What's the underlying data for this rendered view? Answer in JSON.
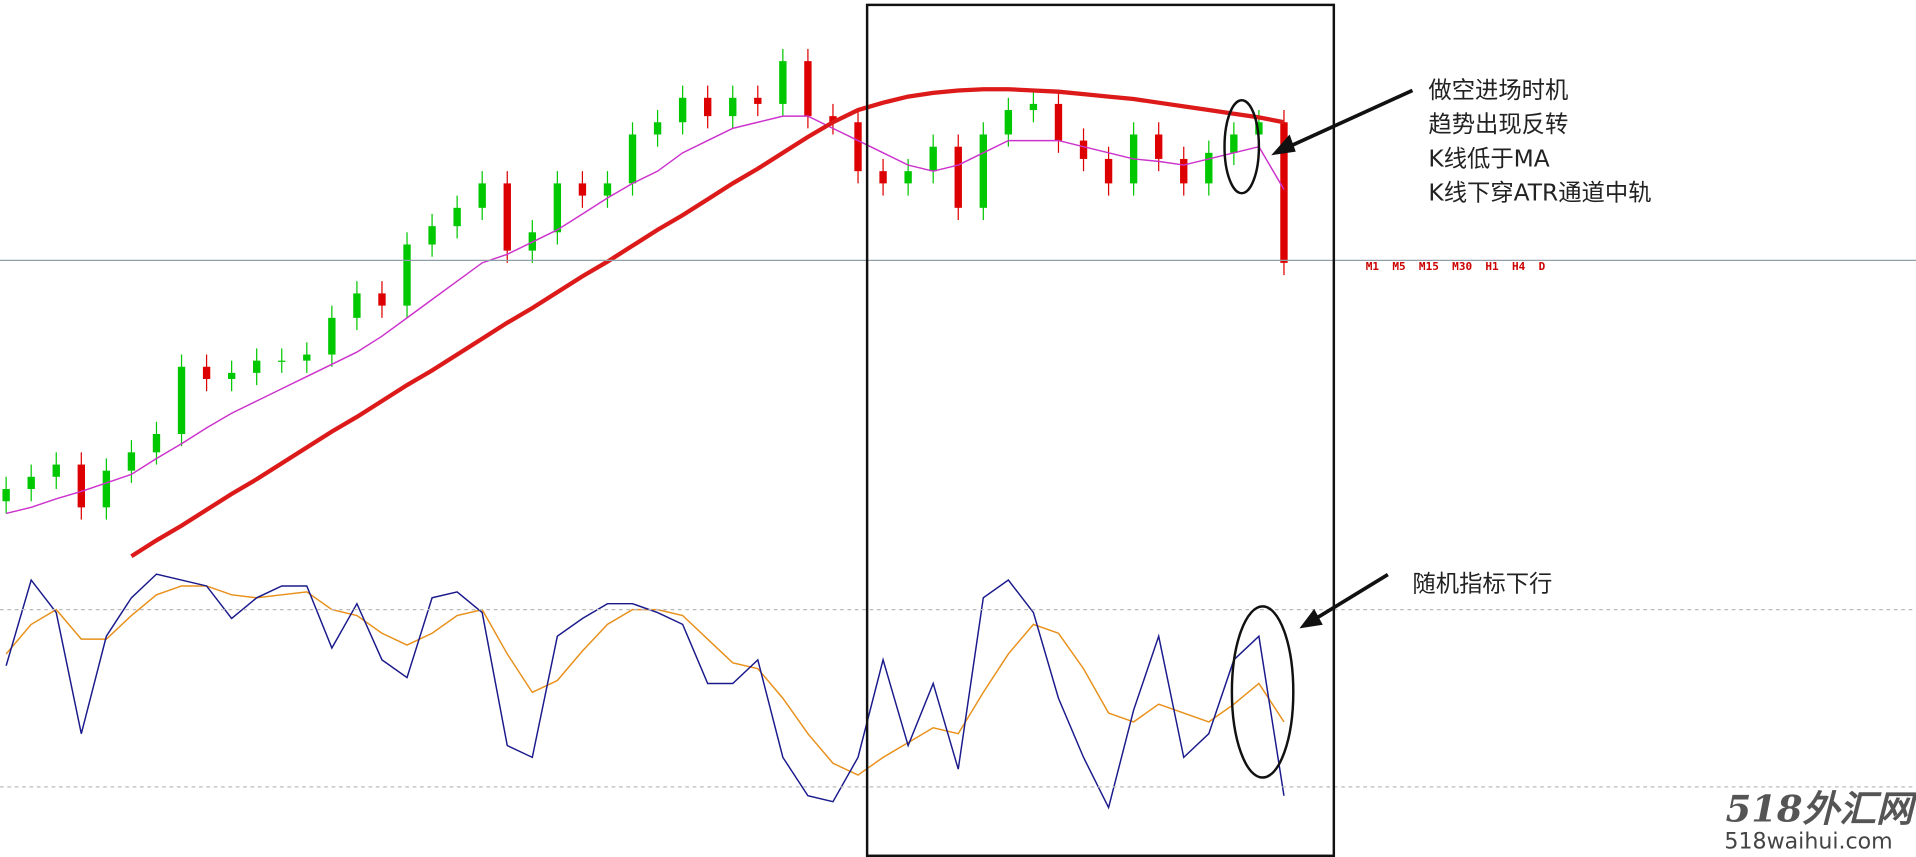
{
  "chart_data": [
    {
      "type": "candlestick",
      "open": [
        50,
        60,
        70,
        80,
        45,
        75,
        90,
        105,
        160,
        150,
        155,
        165,
        165,
        170,
        200,
        220,
        210,
        260,
        275,
        290,
        310,
        255,
        270,
        310,
        300,
        310,
        350,
        360,
        380,
        365,
        380,
        375,
        410,
        365,
        360,
        320,
        310,
        320,
        340,
        290,
        350,
        370,
        375,
        345,
        330,
        310,
        350,
        330,
        310,
        335,
        350,
        360
      ],
      "high": [
        70,
        80,
        90,
        90,
        85,
        100,
        115,
        170,
        170,
        165,
        175,
        175,
        180,
        210,
        230,
        230,
        270,
        285,
        300,
        320,
        320,
        280,
        320,
        320,
        320,
        360,
        370,
        390,
        390,
        390,
        390,
        420,
        420,
        375,
        370,
        330,
        330,
        350,
        350,
        360,
        380,
        385,
        385,
        355,
        340,
        360,
        360,
        340,
        345,
        360,
        370,
        370
      ],
      "low": [
        40,
        50,
        60,
        35,
        35,
        65,
        80,
        95,
        140,
        140,
        145,
        155,
        155,
        160,
        190,
        200,
        200,
        250,
        265,
        280,
        245,
        245,
        260,
        290,
        290,
        300,
        340,
        350,
        355,
        355,
        365,
        365,
        355,
        350,
        310,
        300,
        300,
        310,
        280,
        280,
        340,
        360,
        335,
        320,
        300,
        300,
        320,
        300,
        300,
        325,
        340,
        235
      ],
      "close": [
        60,
        70,
        80,
        45,
        75,
        90,
        105,
        160,
        150,
        155,
        165,
        165,
        170,
        200,
        220,
        210,
        260,
        275,
        290,
        310,
        255,
        270,
        310,
        300,
        310,
        350,
        360,
        380,
        365,
        380,
        375,
        410,
        365,
        360,
        320,
        310,
        320,
        340,
        290,
        350,
        370,
        375,
        345,
        330,
        310,
        350,
        330,
        310,
        335,
        350,
        360,
        245
      ],
      "up_color": "#00c800",
      "down_color": "#dd0000",
      "ylim": [
        0,
        460
      ],
      "series": [
        {
          "color": "#dd1a1a",
          "values": [
            null,
            null,
            null,
            null,
            null,
            5,
            18,
            30,
            43,
            56,
            68,
            81,
            94,
            107,
            119,
            132,
            145,
            157,
            170,
            183,
            196,
            208,
            221,
            234,
            246,
            259,
            272,
            284,
            297,
            310,
            322,
            335,
            348,
            360,
            370,
            376,
            381,
            384,
            386,
            387,
            387,
            386,
            385,
            383,
            381,
            379,
            376,
            373,
            370,
            367,
            364,
            360
          ]
        },
        {
          "color": "#cc33cc",
          "values": [
            40,
            45,
            52,
            58,
            65,
            72,
            85,
            97,
            110,
            122,
            132,
            142,
            152,
            162,
            172,
            185,
            200,
            215,
            230,
            245,
            252,
            262,
            272,
            285,
            298,
            310,
            320,
            335,
            345,
            355,
            360,
            365,
            365,
            355,
            345,
            335,
            325,
            320,
            325,
            335,
            345,
            345,
            345,
            340,
            335,
            330,
            328,
            325,
            330,
            335,
            340,
            305
          ]
        }
      ],
      "price_line": 247,
      "timeframes": "M1  M5  M15  M30  H1  H4  D",
      "annotations": [
        "做空进场时机",
        "趋势出现反转",
        "K线低于MA",
        "K线下穿ATR通道中轨",
        "随机指标下行"
      ]
    },
    {
      "type": "line",
      "ylim": [
        0,
        100
      ],
      "levels": [
        80,
        20
      ],
      "series": [
        {
          "color": "#1a1a8c",
          "values": [
            61,
            90,
            79,
            38,
            71,
            84,
            92,
            90,
            88,
            77,
            84,
            88,
            88,
            67,
            82,
            63,
            57,
            84,
            86,
            79,
            34,
            30,
            71,
            77,
            82,
            82,
            79,
            75,
            55,
            55,
            63,
            30,
            17,
            15,
            30,
            63,
            34,
            55,
            26,
            84,
            90,
            79,
            50,
            30,
            13,
            46,
            71,
            30,
            38,
            63,
            71,
            17
          ]
        },
        {
          "color": "#e8901a",
          "values": [
            65,
            75,
            80,
            70,
            70,
            78,
            85,
            88,
            88,
            85,
            84,
            85,
            86,
            80,
            78,
            72,
            68,
            72,
            78,
            80,
            65,
            52,
            56,
            66,
            75,
            80,
            80,
            78,
            70,
            62,
            60,
            50,
            38,
            28,
            24,
            30,
            35,
            40,
            38,
            52,
            65,
            75,
            72,
            60,
            45,
            42,
            48,
            45,
            42,
            48,
            55,
            42
          ]
        }
      ]
    }
  ],
  "watermark": [
    "518外汇网",
    "518waihui.com"
  ]
}
